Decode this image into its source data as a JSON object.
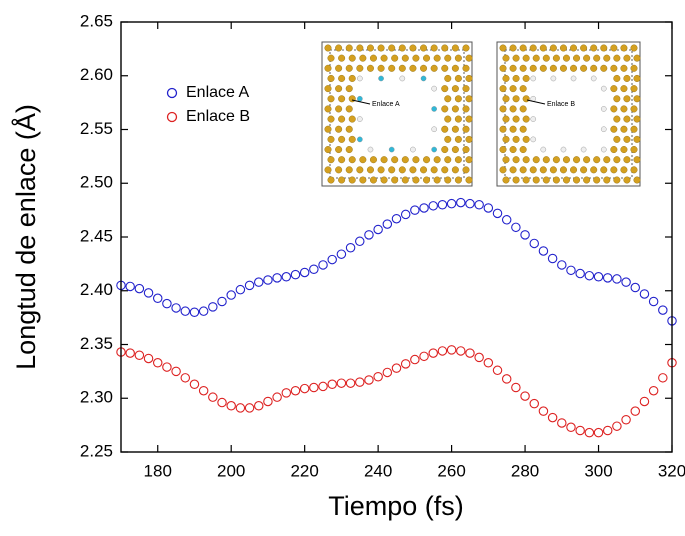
{
  "chart_data": {
    "type": "scatter",
    "x_label": "Tiempo (fs)",
    "y_label": "Longtud de enlace (Å)",
    "xlim": [
      170,
      320
    ],
    "xticks": [
      180,
      200,
      220,
      240,
      260,
      280,
      300,
      320
    ],
    "ylim": [
      2.25,
      2.65
    ],
    "yticks": [
      2.25,
      {
        "value": 2.3,
        "label": "2.30"
      },
      2.35,
      {
        "value": 2.4,
        "label": "2.40"
      },
      2.45,
      {
        "value": 2.5,
        "label": "2.50"
      },
      2.55,
      {
        "value": 2.6,
        "label": "2.60"
      },
      2.65
    ],
    "legend": "top-left",
    "x": [
      170,
      172.5,
      175,
      177.5,
      180,
      182.5,
      185,
      187.5,
      190,
      192.5,
      195,
      197.5,
      200,
      202.5,
      205,
      207.5,
      210,
      212.5,
      215,
      217.5,
      220,
      222.5,
      225,
      227.5,
      230,
      232.5,
      235,
      237.5,
      240,
      242.5,
      245,
      247.5,
      250,
      252.5,
      255,
      257.5,
      260,
      262.5,
      265,
      267.5,
      270,
      272.5,
      275,
      277.5,
      280,
      282.5,
      285,
      287.5,
      290,
      292.5,
      295,
      297.5,
      300,
      302.5,
      305,
      307.5,
      310,
      312.5,
      315,
      317.5,
      320
    ],
    "series": [
      {
        "name": "Enlace A",
        "color": "#2222cc",
        "values": [
          2.405,
          2.404,
          2.402,
          2.398,
          2.393,
          2.388,
          2.384,
          2.381,
          2.38,
          2.381,
          2.385,
          2.39,
          2.396,
          2.401,
          2.405,
          2.408,
          2.41,
          2.412,
          2.413,
          2.415,
          2.417,
          2.42,
          2.424,
          2.429,
          2.434,
          2.44,
          2.446,
          2.452,
          2.457,
          2.462,
          2.467,
          2.471,
          2.475,
          2.477,
          2.479,
          2.48,
          2.481,
          2.482,
          2.481,
          2.48,
          2.477,
          2.472,
          2.466,
          2.459,
          2.452,
          2.444,
          2.437,
          2.43,
          2.424,
          2.419,
          2.416,
          2.414,
          2.413,
          2.412,
          2.411,
          2.408,
          2.403,
          2.397,
          2.39,
          2.382,
          2.372
        ]
      },
      {
        "name": "Enlace B",
        "color": "#dd2222",
        "values": [
          2.343,
          2.342,
          2.34,
          2.337,
          2.333,
          2.329,
          2.325,
          2.319,
          2.313,
          2.307,
          2.301,
          2.296,
          2.293,
          2.291,
          2.291,
          2.293,
          2.297,
          2.301,
          2.305,
          2.307,
          2.309,
          2.31,
          2.311,
          2.313,
          2.314,
          2.314,
          2.315,
          2.317,
          2.32,
          2.324,
          2.328,
          2.332,
          2.336,
          2.339,
          2.342,
          2.344,
          2.345,
          2.344,
          2.342,
          2.338,
          2.333,
          2.326,
          2.318,
          2.31,
          2.302,
          2.295,
          2.288,
          2.282,
          2.277,
          2.273,
          2.27,
          2.268,
          2.268,
          2.27,
          2.274,
          2.28,
          2.288,
          2.297,
          2.307,
          2.319,
          2.333
        ]
      }
    ]
  },
  "insets": [
    {
      "label": "Enlace A"
    },
    {
      "label": "Enlace B"
    }
  ]
}
